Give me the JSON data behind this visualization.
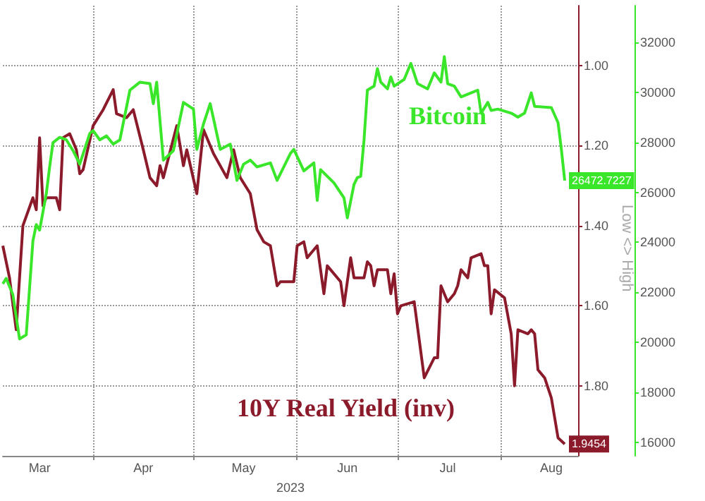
{
  "chart_data": {
    "type": "line",
    "xlabel": "2023",
    "xlim": [
      "2023-03-05",
      "2023-08-24"
    ],
    "xticks": [
      {
        "value": "2023-03-16",
        "label": "Mar"
      },
      {
        "value": "2023-04-01",
        "label": null
      },
      {
        "value": "2023-04-16",
        "label": "Apr"
      },
      {
        "value": "2023-05-01",
        "label": null
      },
      {
        "value": "2023-05-16",
        "label": "May"
      },
      {
        "value": "2023-06-01",
        "label": null
      },
      {
        "value": "2023-06-16",
        "label": "Jun"
      },
      {
        "value": "2023-07-01",
        "label": null
      },
      {
        "value": "2023-07-16",
        "label": "Jul"
      },
      {
        "value": "2023-08-01",
        "label": null
      },
      {
        "value": "2023-08-16",
        "label": "Aug"
      }
    ],
    "ylim": [
      1.975,
      0.85
    ],
    "yticks": [
      {
        "value": 1.0,
        "label": "1.00"
      },
      {
        "value": 1.2,
        "label": "1.20"
      },
      {
        "value": 1.4,
        "label": "1.40"
      },
      {
        "value": 1.6,
        "label": "1.60"
      },
      {
        "value": 1.8,
        "label": "1.80"
      }
    ],
    "y2lim": [
      15460,
      33470
    ],
    "y2ticks": [
      16000,
      18000,
      20000,
      22000,
      24000,
      26000,
      28000,
      30000,
      32000
    ],
    "grid": true,
    "annotations": [
      "Low <> High"
    ],
    "series": [
      {
        "name": "10Y Real Yield (inv)",
        "color": "#8b1a2b",
        "axis": "y",
        "x": [
          "2023-03-05",
          "2023-03-07",
          "2023-03-09",
          "2023-03-11",
          "2023-03-14",
          "2023-03-15",
          "2023-03-16",
          "2023-03-17",
          "2023-03-18",
          "2023-03-21",
          "2023-03-22",
          "2023-03-23",
          "2023-03-25",
          "2023-03-27",
          "2023-03-28",
          "2023-03-29",
          "2023-04-01",
          "2023-04-04",
          "2023-04-07",
          "2023-04-08",
          "2023-04-11",
          "2023-04-13",
          "2023-04-16",
          "2023-04-18",
          "2023-04-20",
          "2023-04-21",
          "2023-04-22",
          "2023-04-26",
          "2023-04-28",
          "2023-04-29",
          "2023-05-02",
          "2023-05-04",
          "2023-05-07",
          "2023-05-11",
          "2023-05-13",
          "2023-05-15",
          "2023-05-18",
          "2023-05-20",
          "2023-05-22",
          "2023-05-24",
          "2023-05-26",
          "2023-05-27",
          "2023-05-31",
          "2023-06-01",
          "2023-06-03",
          "2023-06-04",
          "2023-06-07",
          "2023-06-09",
          "2023-06-10",
          "2023-06-14",
          "2023-06-15",
          "2023-06-17",
          "2023-06-18",
          "2023-06-21",
          "2023-06-22",
          "2023-06-23",
          "2023-06-24",
          "2023-06-25",
          "2023-06-28",
          "2023-06-29",
          "2023-06-30",
          "2023-07-01",
          "2023-07-02",
          "2023-07-06",
          "2023-07-09",
          "2023-07-12",
          "2023-07-13",
          "2023-07-14",
          "2023-07-16",
          "2023-07-18",
          "2023-07-19",
          "2023-07-20",
          "2023-07-22",
          "2023-07-23",
          "2023-07-26",
          "2023-07-27",
          "2023-07-28",
          "2023-07-29",
          "2023-07-30",
          "2023-08-02",
          "2023-08-04",
          "2023-08-05",
          "2023-08-06",
          "2023-08-09",
          "2023-08-10",
          "2023-08-11",
          "2023-08-12",
          "2023-08-14",
          "2023-08-16",
          "2023-08-18",
          "2023-08-20"
        ],
        "values": [
          1.45,
          1.53,
          1.66,
          1.4,
          1.33,
          1.36,
          1.18,
          1.35,
          1.33,
          1.33,
          1.36,
          1.18,
          1.17,
          1.21,
          1.27,
          1.26,
          1.15,
          1.11,
          1.06,
          1.12,
          1.13,
          1.11,
          1.21,
          1.28,
          1.3,
          1.25,
          1.28,
          1.15,
          1.25,
          1.21,
          1.32,
          1.16,
          1.22,
          1.28,
          1.21,
          1.28,
          1.32,
          1.41,
          1.44,
          1.45,
          1.55,
          1.54,
          1.54,
          1.45,
          1.44,
          1.48,
          1.45,
          1.57,
          1.5,
          1.54,
          1.6,
          1.48,
          1.53,
          1.53,
          1.49,
          1.5,
          1.55,
          1.51,
          1.51,
          1.57,
          1.52,
          1.62,
          1.6,
          1.59,
          1.78,
          1.73,
          1.73,
          1.55,
          1.59,
          1.57,
          1.55,
          1.51,
          1.53,
          1.48,
          1.47,
          1.5,
          1.5,
          1.62,
          1.56,
          1.58,
          1.67,
          1.8,
          1.66,
          1.67,
          1.66,
          1.67,
          1.76,
          1.78,
          1.83,
          1.93,
          1.9454
        ],
        "value_labels": [
          null,
          null,
          null,
          null,
          null,
          null,
          null,
          null,
          null,
          null,
          null,
          null,
          null,
          null,
          null,
          null,
          null,
          null,
          null,
          null,
          null,
          null,
          null,
          null,
          null,
          null,
          null,
          null,
          null,
          null,
          null,
          null,
          null,
          null,
          null,
          null,
          null,
          null,
          null,
          null,
          null,
          null,
          null,
          null,
          null,
          null,
          null,
          null,
          null,
          null,
          null,
          null,
          null,
          null,
          null,
          null,
          null,
          null,
          null,
          null,
          null,
          null,
          null,
          null,
          null,
          null,
          null,
          null,
          null,
          null,
          null,
          null,
          null,
          null,
          null,
          null,
          null,
          null,
          null,
          null,
          null,
          null,
          null,
          null,
          null,
          null,
          null,
          null,
          null,
          null,
          "1.9454"
        ]
      },
      {
        "name": "Bitcoin",
        "color": "#39e62a",
        "axis": "y2",
        "x": [
          "2023-03-05",
          "2023-03-06",
          "2023-03-08",
          "2023-03-10",
          "2023-03-12",
          "2023-03-14",
          "2023-03-15",
          "2023-03-16",
          "2023-03-18",
          "2023-03-19",
          "2023-03-20",
          "2023-03-22",
          "2023-03-24",
          "2023-03-26",
          "2023-03-28",
          "2023-03-31",
          "2023-04-01",
          "2023-04-03",
          "2023-04-05",
          "2023-04-07",
          "2023-04-09",
          "2023-04-12",
          "2023-04-15",
          "2023-04-18",
          "2023-04-19",
          "2023-04-20",
          "2023-04-22",
          "2023-04-25",
          "2023-04-28",
          "2023-05-01",
          "2023-05-02",
          "2023-05-04",
          "2023-05-06",
          "2023-05-09",
          "2023-05-12",
          "2023-05-14",
          "2023-05-16",
          "2023-05-18",
          "2023-05-20",
          "2023-05-24",
          "2023-05-26",
          "2023-05-30",
          "2023-05-31",
          "2023-06-03",
          "2023-06-06",
          "2023-06-07",
          "2023-06-08",
          "2023-06-12",
          "2023-06-15",
          "2023-06-16",
          "2023-06-18",
          "2023-06-19",
          "2023-06-20",
          "2023-06-21",
          "2023-06-22",
          "2023-06-24",
          "2023-06-25",
          "2023-06-26",
          "2023-06-28",
          "2023-06-29",
          "2023-06-30",
          "2023-07-03",
          "2023-07-05",
          "2023-07-07",
          "2023-07-10",
          "2023-07-12",
          "2023-07-14",
          "2023-07-15",
          "2023-07-16",
          "2023-07-18",
          "2023-07-20",
          "2023-07-23",
          "2023-07-25",
          "2023-07-26",
          "2023-07-28",
          "2023-07-29",
          "2023-07-31",
          "2023-08-04",
          "2023-08-06",
          "2023-08-08",
          "2023-08-10",
          "2023-08-11",
          "2023-08-16",
          "2023-08-18",
          "2023-08-19",
          "2023-08-20"
        ],
        "values": [
          22340,
          22560,
          21910,
          20140,
          20300,
          24060,
          24710,
          24490,
          25950,
          27020,
          27990,
          28200,
          28100,
          27670,
          27130,
          28360,
          28470,
          28100,
          28260,
          27930,
          28100,
          30090,
          30410,
          30350,
          29550,
          30410,
          27290,
          27670,
          29600,
          29330,
          27720,
          28740,
          29550,
          27720,
          27930,
          26480,
          27130,
          27290,
          27020,
          27180,
          26480,
          27560,
          27720,
          26860,
          27180,
          25680,
          26910,
          26380,
          25780,
          24980,
          26320,
          26590,
          26640,
          28100,
          30090,
          30250,
          30950,
          30410,
          30140,
          30620,
          30250,
          30520,
          31160,
          30350,
          30140,
          30780,
          30410,
          31430,
          30350,
          30250,
          29820,
          29980,
          30090,
          29170,
          29600,
          29280,
          29330,
          29170,
          29010,
          29170,
          29980,
          29440,
          29390,
          28790,
          27720,
          26472.7227
        ],
        "value_labels": [
          null,
          null,
          null,
          null,
          null,
          null,
          null,
          null,
          null,
          null,
          null,
          null,
          null,
          null,
          null,
          null,
          null,
          null,
          null,
          null,
          null,
          null,
          null,
          null,
          null,
          null,
          null,
          null,
          null,
          null,
          null,
          null,
          null,
          null,
          null,
          null,
          null,
          null,
          null,
          null,
          null,
          null,
          null,
          null,
          null,
          null,
          null,
          null,
          null,
          null,
          null,
          null,
          null,
          null,
          null,
          null,
          null,
          null,
          null,
          null,
          null,
          null,
          null,
          null,
          null,
          null,
          null,
          null,
          null,
          null,
          null,
          null,
          null,
          null,
          null,
          null,
          null,
          null,
          null,
          null,
          null,
          null,
          null,
          null,
          null,
          "26472.7227"
        ]
      }
    ]
  }
}
